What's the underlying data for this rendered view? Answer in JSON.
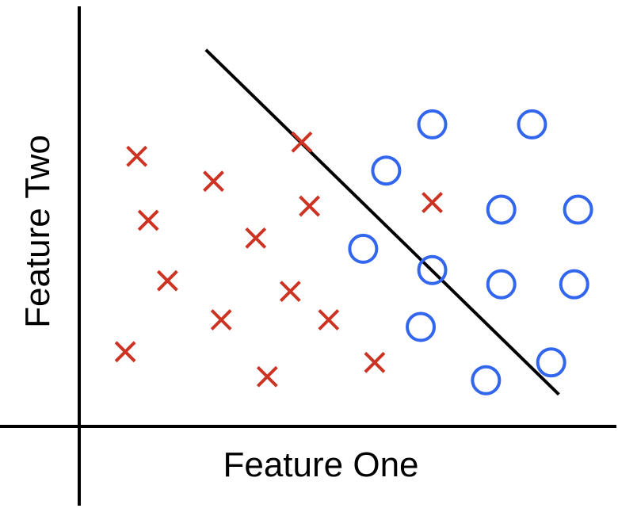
{
  "chart_data": {
    "type": "scatter",
    "title": "",
    "xlabel": "Feature One",
    "ylabel": "Feature Two",
    "grid": false,
    "legend": "none",
    "series": [
      {
        "marker": "x",
        "color": "#cc3322",
        "points": [
          [
            1.5,
            7.6
          ],
          [
            3.5,
            6.9
          ],
          [
            5.8,
            8.0
          ],
          [
            1.8,
            5.8
          ],
          [
            4.6,
            5.3
          ],
          [
            6.0,
            6.2
          ],
          [
            2.3,
            4.1
          ],
          [
            5.5,
            3.8
          ],
          [
            3.7,
            3.0
          ],
          [
            6.5,
            3.0
          ],
          [
            1.2,
            2.1
          ],
          [
            4.9,
            1.4
          ],
          [
            7.7,
            1.8
          ],
          [
            9.2,
            6.3
          ]
        ]
      },
      {
        "marker": "o",
        "color": "#3366ee",
        "points": [
          [
            9.2,
            8.5
          ],
          [
            11.8,
            8.5
          ],
          [
            8.0,
            7.2
          ],
          [
            11.0,
            6.1
          ],
          [
            13.0,
            6.1
          ],
          [
            7.4,
            5.0
          ],
          [
            9.2,
            4.4
          ],
          [
            11.0,
            4.0
          ],
          [
            12.9,
            4.0
          ],
          [
            8.9,
            2.8
          ],
          [
            12.3,
            1.8
          ],
          [
            10.6,
            1.3
          ]
        ]
      }
    ],
    "decision_boundary": [
      [
        3.3,
        10.6
      ],
      [
        12.5,
        0.9
      ]
    ],
    "xlim": [
      0,
      14
    ],
    "ylim": [
      0,
      12
    ]
  }
}
